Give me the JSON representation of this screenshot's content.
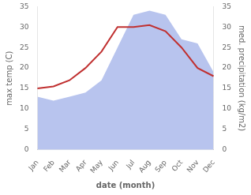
{
  "chart_data": {
    "type": "line",
    "xlabel": "date (month)",
    "ylabel": "max temp (C)",
    "y2label": "med. precipitation (kg/m2)",
    "categories": [
      "Jan",
      "Feb",
      "Mar",
      "Apr",
      "May",
      "Jun",
      "Jul",
      "Aug",
      "Sep",
      "Oct",
      "Nov",
      "Dec"
    ],
    "series": [
      {
        "type": "area",
        "color": "#b8c4ee",
        "axis": "y2",
        "values": [
          13,
          12,
          13,
          14,
          17,
          25,
          33,
          34,
          33,
          27,
          26,
          19
        ]
      },
      {
        "type": "line",
        "color": "#c03030",
        "values": [
          15,
          15.5,
          17,
          20,
          24,
          30,
          30,
          30.5,
          29,
          25,
          20,
          18
        ]
      }
    ],
    "ylim": [
      0,
      35
    ],
    "yticks": [
      0,
      5,
      10,
      15,
      20,
      25,
      30,
      35
    ],
    "y2lim": [
      0,
      35
    ],
    "y2ticks": [
      0,
      5,
      10,
      15,
      20,
      25,
      30,
      35
    ],
    "grid": false
  }
}
